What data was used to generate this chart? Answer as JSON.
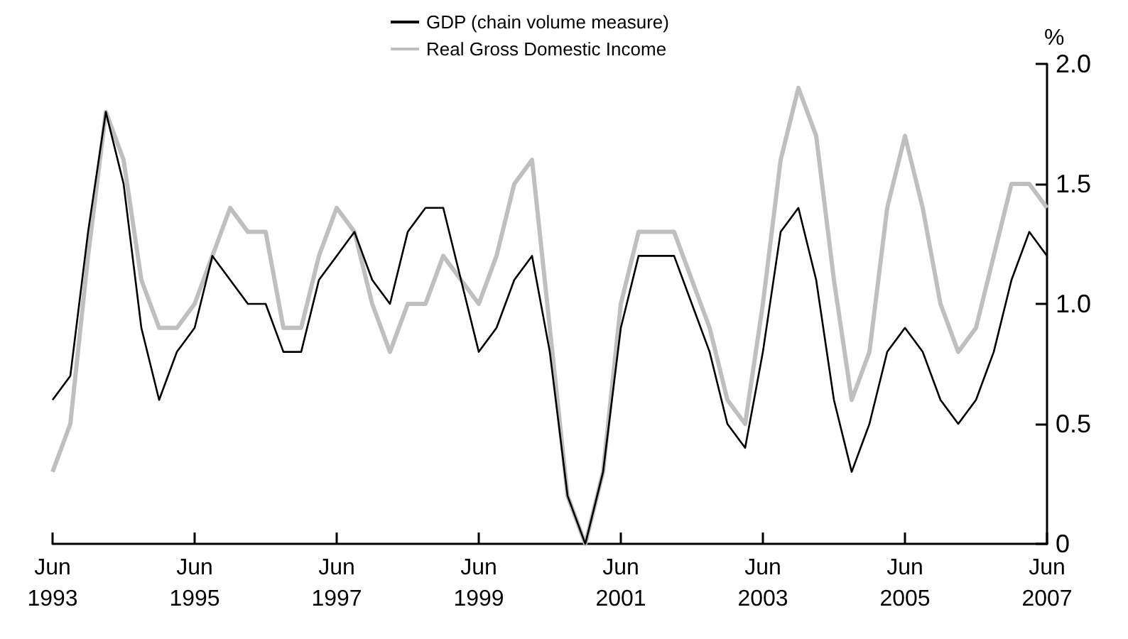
{
  "chart_data": {
    "type": "line",
    "ylabel": "%",
    "categories": [
      "Jun\n1993",
      null,
      null,
      null,
      null,
      null,
      null,
      null,
      "Jun\n1995",
      null,
      null,
      null,
      null,
      null,
      null,
      null,
      "Jun\n1997",
      null,
      null,
      null,
      null,
      null,
      null,
      null,
      "Jun\n1999",
      null,
      null,
      null,
      null,
      null,
      null,
      null,
      "Jun\n2001",
      null,
      null,
      null,
      null,
      null,
      null,
      null,
      "Jun\n2003",
      null,
      null,
      null,
      null,
      null,
      null,
      null,
      "Jun\n2005",
      null,
      null,
      null,
      null,
      null,
      null,
      null,
      "Jun\n2007"
    ],
    "series": [
      {
        "name": "GDP (chain volume measure)",
        "color": "#000000",
        "values": [
          0.6,
          0.7,
          1.3,
          1.8,
          1.5,
          0.9,
          0.6,
          0.8,
          0.9,
          1.2,
          1.1,
          1.0,
          1.0,
          0.8,
          0.8,
          1.1,
          1.2,
          1.3,
          1.1,
          1.0,
          1.3,
          1.4,
          1.4,
          1.1,
          0.8,
          0.9,
          1.1,
          1.2,
          0.8,
          0.2,
          0.0,
          0.3,
          0.9,
          1.2,
          1.2,
          1.2,
          1.0,
          0.8,
          0.5,
          0.4,
          0.8,
          1.3,
          1.4,
          1.1,
          0.6,
          0.3,
          0.5,
          0.8,
          0.9,
          0.8,
          0.6,
          0.5,
          0.6,
          0.8,
          1.1,
          1.3,
          1.2
        ]
      },
      {
        "name": "Real Gross Domestic Income",
        "color": "#bfbfbf",
        "values": [
          0.3,
          0.5,
          1.2,
          1.8,
          1.6,
          1.1,
          0.9,
          0.9,
          1.0,
          1.2,
          1.4,
          1.3,
          1.3,
          0.9,
          0.9,
          1.2,
          1.4,
          1.3,
          1.0,
          0.8,
          1.0,
          1.0,
          1.2,
          1.1,
          1.0,
          1.2,
          1.5,
          1.6,
          0.9,
          0.2,
          0.0,
          0.3,
          1.0,
          1.3,
          1.3,
          1.3,
          1.1,
          0.9,
          0.6,
          0.5,
          1.0,
          1.6,
          1.9,
          1.7,
          1.1,
          0.6,
          0.8,
          1.4,
          1.7,
          1.4,
          1.0,
          0.8,
          0.9,
          1.2,
          1.5,
          1.5,
          1.4
        ]
      }
    ],
    "ylim": [
      0,
      2
    ],
    "yticks": [
      0,
      {
        "value": 0.5,
        "label": "0.5"
      },
      {
        "value": 1,
        "label": "1.0"
      },
      {
        "value": 1.5,
        "label": "1.5"
      },
      {
        "value": 2,
        "label": "2.0"
      }
    ],
    "grid": false,
    "legend": "top",
    "marker": "none",
    "line_style": "solid"
  }
}
